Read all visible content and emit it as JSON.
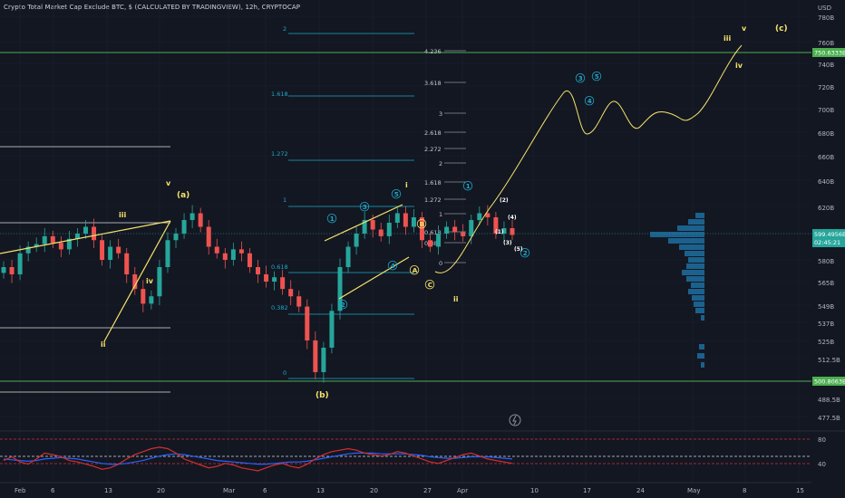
{
  "chart_title": "Crypto Total Market Cap Exclude BTC, $ (CALCULATED BY TRADINGVIEW), 12h, CRYPTOCAP",
  "currency": "USD",
  "price_axis": [
    {
      "label": "780B",
      "v": 780
    },
    {
      "label": "760B",
      "v": 760
    },
    {
      "label": "740B",
      "v": 740
    },
    {
      "label": "720B",
      "v": 720
    },
    {
      "label": "700B",
      "v": 700
    },
    {
      "label": "680B",
      "v": 680
    },
    {
      "label": "660B",
      "v": 660
    },
    {
      "label": "640B",
      "v": 640
    },
    {
      "label": "620B",
      "v": 620
    },
    {
      "label": "600B",
      "v": 600
    },
    {
      "label": "580B",
      "v": 580
    },
    {
      "label": "565B",
      "v": 565
    },
    {
      "label": "549B",
      "v": 549
    },
    {
      "label": "537B",
      "v": 537
    },
    {
      "label": "525B",
      "v": 525
    },
    {
      "label": "512.5B",
      "v": 512.5
    },
    {
      "label": "500B",
      "v": 500
    },
    {
      "label": "488.5B",
      "v": 488.5
    },
    {
      "label": "477.5B",
      "v": 477.5
    }
  ],
  "price_tags": {
    "upper": "750.6333B",
    "current": "599.4956B",
    "countdown": "02:45:21",
    "lower": "500.8063B"
  },
  "time_axis": [
    "Feb",
    "6",
    "13",
    "20",
    "Mar",
    "6",
    "13",
    "20",
    "27",
    "Apr",
    "10",
    "17",
    "24",
    "May",
    "8",
    "15"
  ],
  "rsi_axis": [
    "80",
    "40"
  ],
  "fib_labels": [
    {
      "text": "2",
      "level": "upper"
    },
    {
      "text": "1.618",
      "level": "upper"
    },
    {
      "text": "1.272",
      "level": "upper"
    },
    {
      "text": "1",
      "level": "upper"
    },
    {
      "text": "0.618",
      "level": "upper"
    },
    {
      "text": "0.382",
      "level": "upper"
    },
    {
      "text": "0",
      "level": "upper"
    },
    {
      "text": "4.236",
      "level": "small"
    },
    {
      "text": "3.618",
      "level": "small"
    },
    {
      "text": "3",
      "level": "small"
    },
    {
      "text": "2.618",
      "level": "small"
    },
    {
      "text": "2.272",
      "level": "small"
    },
    {
      "text": "2",
      "level": "small"
    },
    {
      "text": "1.618",
      "level": "small"
    },
    {
      "text": "1.272",
      "level": "small"
    },
    {
      "text": "1",
      "level": "small"
    },
    {
      "text": "0.618",
      "level": "small"
    },
    {
      "text": "0.382",
      "level": "small"
    },
    {
      "text": "0",
      "level": "small"
    }
  ],
  "wave_labels": {
    "a": "(a)",
    "b": "(b)",
    "c": "(c)",
    "roman": [
      "i",
      "ii",
      "iii",
      "iv",
      "v"
    ],
    "sub": [
      "1",
      "2",
      "3",
      "4",
      "5"
    ],
    "letters": [
      "A",
      "B",
      "C"
    ],
    "paren": [
      "(1)",
      "(2)",
      "(3)",
      "(4)",
      "(5)"
    ]
  },
  "colors": {
    "background": "#131722",
    "bull": "#26a69a",
    "bear": "#ef5350",
    "wave": "#f6e36a",
    "fib": "#2196f3",
    "green_line": "#4caf50",
    "rsi": "#d32f2f",
    "rsi_ma": "#2962ff",
    "volume_profile": "#1e6fa0"
  },
  "chart_data": {
    "type": "candlestick",
    "title": "Crypto Total Market Cap Exclude BTC, $ (CALCULATED BY TRADINGVIEW), 12h, CRYPTOCAP",
    "x_labels": [
      "Feb",
      "6",
      "13",
      "20",
      "Mar",
      "6",
      "13",
      "20",
      "27",
      "Apr",
      "10",
      "17",
      "24",
      "May",
      "8",
      "15"
    ],
    "price_closes": [
      575,
      570,
      585,
      590,
      592,
      598,
      593,
      588,
      596,
      600,
      605,
      595,
      580,
      590,
      585,
      570,
      560,
      550,
      555,
      575,
      595,
      600,
      610,
      615,
      605,
      590,
      585,
      580,
      588,
      585,
      575,
      570,
      565,
      568,
      560,
      555,
      548,
      525,
      505,
      520,
      545,
      575,
      590,
      600,
      610,
      603,
      598,
      608,
      615,
      605,
      612,
      595,
      590,
      600,
      605,
      601,
      598,
      610,
      615,
      612,
      600,
      604,
      599
    ],
    "ylim": [
      477.5,
      790
    ],
    "projection_path": [
      599,
      620,
      660,
      700,
      720,
      685,
      705,
      690,
      710,
      695,
      705,
      730,
      760
    ],
    "rsi_range": [
      20,
      90
    ]
  }
}
